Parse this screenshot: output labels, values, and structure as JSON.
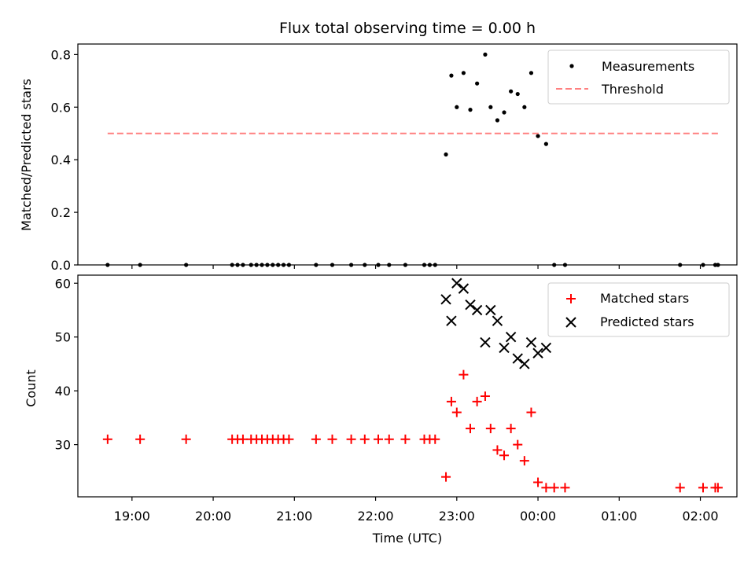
{
  "chart_data": [
    {
      "type": "scatter",
      "title": "Flux total observing time = 0.00 h",
      "ylabel": "Matched/Predicted stars",
      "xlabel": "",
      "ylim": [
        0,
        0.84
      ],
      "yticks": [
        0.0,
        0.2,
        0.4,
        0.6,
        0.8
      ],
      "ytick_labels": [
        "0.0",
        "0.2",
        "0.4",
        "0.6",
        "0.8"
      ],
      "grid": false,
      "legend": "upper right",
      "series": [
        {
          "name": "Measurements",
          "marker": "dot",
          "color": "#000000",
          "points": [
            [
              "18:42",
              0.0
            ],
            [
              "19:06",
              0.0
            ],
            [
              "19:40",
              0.0
            ],
            [
              "20:14",
              0.0
            ],
            [
              "20:18",
              0.0
            ],
            [
              "20:22",
              0.0
            ],
            [
              "20:28",
              0.0
            ],
            [
              "20:32",
              0.0
            ],
            [
              "20:36",
              0.0
            ],
            [
              "20:40",
              0.0
            ],
            [
              "20:44",
              0.0
            ],
            [
              "20:48",
              0.0
            ],
            [
              "20:52",
              0.0
            ],
            [
              "20:56",
              0.0
            ],
            [
              "21:16",
              0.0
            ],
            [
              "21:28",
              0.0
            ],
            [
              "21:42",
              0.0
            ],
            [
              "21:52",
              0.0
            ],
            [
              "22:02",
              0.0
            ],
            [
              "22:10",
              0.0
            ],
            [
              "22:22",
              0.0
            ],
            [
              "22:36",
              0.0
            ],
            [
              "22:40",
              0.0
            ],
            [
              "22:44",
              0.0
            ],
            [
              "22:52",
              0.42
            ],
            [
              "22:56",
              0.72
            ],
            [
              "23:00",
              0.6
            ],
            [
              "23:05",
              0.73
            ],
            [
              "23:10",
              0.59
            ],
            [
              "23:15",
              0.69
            ],
            [
              "23:21",
              0.8
            ],
            [
              "23:25",
              0.6
            ],
            [
              "23:30",
              0.55
            ],
            [
              "23:35",
              0.58
            ],
            [
              "23:40",
              0.66
            ],
            [
              "23:45",
              0.65
            ],
            [
              "23:50",
              0.6
            ],
            [
              "23:55",
              0.73
            ],
            [
              "00:00",
              0.49
            ],
            [
              "00:06",
              0.46
            ],
            [
              "00:12",
              0.0
            ],
            [
              "00:20",
              0.0
            ],
            [
              "01:45",
              0.0
            ],
            [
              "02:02",
              0.0
            ],
            [
              "02:11",
              0.0
            ],
            [
              "02:13",
              0.0
            ]
          ]
        },
        {
          "name": "Threshold",
          "marker": "dashed-line",
          "color": "#ff8080",
          "points": [
            [
              "18:42",
              0.5
            ],
            [
              "02:13",
              0.5
            ]
          ]
        }
      ]
    },
    {
      "type": "scatter",
      "title": "",
      "ylabel": "Count",
      "xlabel": "Time (UTC)",
      "ylim": [
        20.3,
        61.5
      ],
      "yticks": [
        30,
        40,
        50,
        60
      ],
      "ytick_labels": [
        "30",
        "40",
        "50",
        "60"
      ],
      "xticks": [
        "19:00",
        "20:00",
        "21:00",
        "22:00",
        "23:00",
        "00:00",
        "01:00",
        "02:00"
      ],
      "grid": false,
      "legend": "upper right",
      "series": [
        {
          "name": "Matched stars",
          "marker": "plus",
          "color": "#ff0000",
          "points": [
            [
              "18:42",
              31
            ],
            [
              "19:06",
              31
            ],
            [
              "19:40",
              31
            ],
            [
              "20:14",
              31
            ],
            [
              "20:18",
              31
            ],
            [
              "20:22",
              31
            ],
            [
              "20:28",
              31
            ],
            [
              "20:32",
              31
            ],
            [
              "20:36",
              31
            ],
            [
              "20:40",
              31
            ],
            [
              "20:44",
              31
            ],
            [
              "20:48",
              31
            ],
            [
              "20:52",
              31
            ],
            [
              "20:56",
              31
            ],
            [
              "21:16",
              31
            ],
            [
              "21:28",
              31
            ],
            [
              "21:42",
              31
            ],
            [
              "21:52",
              31
            ],
            [
              "22:02",
              31
            ],
            [
              "22:10",
              31
            ],
            [
              "22:22",
              31
            ],
            [
              "22:36",
              31
            ],
            [
              "22:40",
              31
            ],
            [
              "22:44",
              31
            ],
            [
              "22:52",
              24
            ],
            [
              "22:56",
              38
            ],
            [
              "23:00",
              36
            ],
            [
              "23:05",
              43
            ],
            [
              "23:10",
              33
            ],
            [
              "23:15",
              38
            ],
            [
              "23:21",
              39
            ],
            [
              "23:25",
              33
            ],
            [
              "23:30",
              29
            ],
            [
              "23:35",
              28
            ],
            [
              "23:40",
              33
            ],
            [
              "23:45",
              30
            ],
            [
              "23:50",
              27
            ],
            [
              "23:55",
              36
            ],
            [
              "00:00",
              23
            ],
            [
              "00:06",
              22
            ],
            [
              "00:12",
              22
            ],
            [
              "00:20",
              22
            ],
            [
              "01:45",
              22
            ],
            [
              "02:02",
              22
            ],
            [
              "02:11",
              22
            ],
            [
              "02:13",
              22
            ]
          ]
        },
        {
          "name": "Predicted stars",
          "marker": "x",
          "color": "#000000",
          "points": [
            [
              "22:52",
              57
            ],
            [
              "22:56",
              53
            ],
            [
              "23:00",
              60
            ],
            [
              "23:05",
              59
            ],
            [
              "23:10",
              56
            ],
            [
              "23:15",
              55
            ],
            [
              "23:21",
              49
            ],
            [
              "23:25",
              55
            ],
            [
              "23:30",
              53
            ],
            [
              "23:35",
              48
            ],
            [
              "23:40",
              50
            ],
            [
              "23:45",
              46
            ],
            [
              "23:50",
              45
            ],
            [
              "23:55",
              49
            ],
            [
              "00:00",
              47
            ],
            [
              "00:06",
              48
            ]
          ]
        }
      ]
    }
  ],
  "x_range": [
    "18:20",
    "02:27"
  ]
}
